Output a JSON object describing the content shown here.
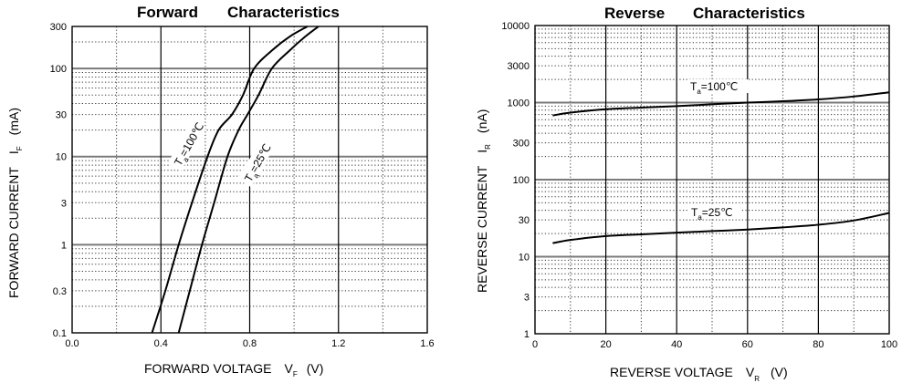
{
  "chart_data": [
    {
      "type": "line",
      "title_words": [
        "Forward",
        "Characteristics"
      ],
      "title": "Forward Characteristics",
      "xlabel": {
        "main": "FORWARD VOLTAGE",
        "symbol": "V",
        "subscript": "F",
        "unit": "(V)"
      },
      "ylabel": {
        "main": "FORWARD CURRENT",
        "symbol": "I",
        "subscript": "F",
        "unit": "(mA)"
      },
      "xscale": "linear",
      "yscale": "log",
      "xlim": [
        0.0,
        1.6
      ],
      "ylim": [
        0.1,
        300
      ],
      "x_ticks": [
        "0.0",
        "0.4",
        "0.8",
        "1.2",
        "1.6"
      ],
      "x_tick_values": [
        0.0,
        0.4,
        0.8,
        1.2,
        1.6
      ],
      "x_major_grid": [
        0.4,
        0.8,
        1.2
      ],
      "x_minor_grid": [
        0.2,
        0.6,
        1.0,
        1.4
      ],
      "y_ticks": [
        "0.1",
        "0.3",
        "1",
        "3",
        "10",
        "30",
        "100",
        "300"
      ],
      "y_tick_values": [
        0.1,
        0.3,
        1,
        3,
        10,
        30,
        100,
        300
      ],
      "grid": true,
      "series": [
        {
          "name": "Ta=100℃",
          "label_main": "T",
          "label_sub": "a",
          "label_rest": "=100℃",
          "x": [
            0.36,
            0.42,
            0.48,
            0.54,
            0.61,
            0.66,
            0.72,
            0.77,
            0.82,
            0.9,
            0.98,
            1.06
          ],
          "y": [
            0.1,
            0.3,
            1,
            3,
            10,
            20,
            30,
            50,
            100,
            160,
            230,
            300
          ]
        },
        {
          "name": "Ta=25℃",
          "label_main": "T",
          "label_sub": "a",
          "label_rest": "=25℃",
          "x": [
            0.48,
            0.53,
            0.585,
            0.64,
            0.7,
            0.75,
            0.79,
            0.84,
            0.9,
            0.98,
            1.05,
            1.11
          ],
          "y": [
            0.1,
            0.3,
            1,
            3,
            10,
            20,
            30,
            50,
            100,
            160,
            230,
            300
          ]
        }
      ]
    },
    {
      "type": "line",
      "title_words": [
        "Reverse",
        "Characteristics"
      ],
      "title": "Reverse Characteristics",
      "xlabel": {
        "main": "REVERSE VOLTAGE",
        "symbol": "V",
        "subscript": "R",
        "unit": "(V)"
      },
      "ylabel": {
        "main": "REVERSE CURRENT",
        "symbol": "I",
        "subscript": "R",
        "unit": "(nA)"
      },
      "xscale": "linear",
      "yscale": "log",
      "xlim": [
        0,
        100
      ],
      "ylim": [
        1,
        10000
      ],
      "x_ticks": [
        "0",
        "20",
        "40",
        "60",
        "80",
        "100"
      ],
      "x_tick_values": [
        0,
        20,
        40,
        60,
        80,
        100
      ],
      "x_major_grid": [
        20,
        40,
        60,
        80
      ],
      "x_minor_grid": [
        10,
        30,
        50,
        70,
        90
      ],
      "y_ticks": [
        "1",
        "3",
        "10",
        "30",
        "100",
        "300",
        "1000",
        "3000",
        "10000"
      ],
      "y_tick_values": [
        1,
        3,
        10,
        30,
        100,
        300,
        1000,
        3000,
        10000
      ],
      "grid": true,
      "series": [
        {
          "name": "Ta=100℃",
          "label_main": "T",
          "label_sub": "a",
          "label_rest": "=100℃",
          "x": [
            5,
            10,
            20,
            30,
            40,
            50,
            60,
            70,
            80,
            90,
            100
          ],
          "y": [
            680,
            740,
            820,
            860,
            900,
            950,
            1000,
            1040,
            1100,
            1200,
            1360
          ]
        },
        {
          "name": "Ta=25℃",
          "label_main": "T",
          "label_sub": "a",
          "label_rest": "=25℃",
          "x": [
            5,
            10,
            20,
            30,
            40,
            50,
            60,
            70,
            80,
            90,
            100
          ],
          "y": [
            15,
            16.5,
            18.5,
            19.5,
            20.5,
            21.5,
            22.5,
            24,
            26,
            29.5,
            37
          ]
        }
      ]
    }
  ]
}
